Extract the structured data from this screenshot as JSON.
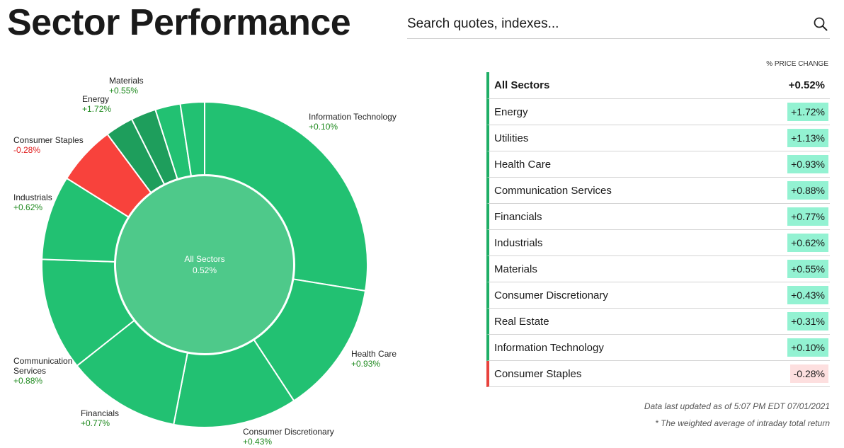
{
  "page": {
    "title": "Sector Performance"
  },
  "search": {
    "placeholder": "Search quotes, indexes..."
  },
  "table": {
    "header": "% PRICE CHANGE",
    "rows": [
      {
        "name": "All Sectors",
        "value": "+0.52%",
        "status": "summary"
      },
      {
        "name": "Energy",
        "value": "+1.72%",
        "status": "up"
      },
      {
        "name": "Utilities",
        "value": "+1.13%",
        "status": "up"
      },
      {
        "name": "Health Care",
        "value": "+0.93%",
        "status": "up"
      },
      {
        "name": "Communication Services",
        "value": "+0.88%",
        "status": "up"
      },
      {
        "name": "Financials",
        "value": "+0.77%",
        "status": "up"
      },
      {
        "name": "Industrials",
        "value": "+0.62%",
        "status": "up"
      },
      {
        "name": "Materials",
        "value": "+0.55%",
        "status": "up"
      },
      {
        "name": "Consumer Discretionary",
        "value": "+0.43%",
        "status": "up"
      },
      {
        "name": "Real Estate",
        "value": "+0.31%",
        "status": "up"
      },
      {
        "name": "Information Technology",
        "value": "+0.10%",
        "status": "up"
      },
      {
        "name": "Consumer Staples",
        "value": "-0.28%",
        "status": "down"
      }
    ]
  },
  "footer": {
    "updated": "Data last updated as of 5:07 PM EDT 07/01/2021",
    "note": "* The weighted average of intraday total return"
  },
  "colors": {
    "positive": "#22c172",
    "positive_dark": "#1e9e5c",
    "negative": "#f8423c",
    "center": "#4ec98a",
    "positive_text": "#1f8a1f",
    "negative_text": "#e02020"
  },
  "chart_data": {
    "type": "pie",
    "center_label": {
      "name": "All Sectors",
      "value": "0.52%"
    },
    "slices": [
      {
        "name": "Information Technology",
        "value": 27.6,
        "change": 0.1,
        "label": "Information Technology",
        "change_label": "+0.10%",
        "labeled": true
      },
      {
        "name": "Health Care",
        "value": 13.2,
        "change": 0.93,
        "label": "Health Care",
        "change_label": "+0.93%",
        "labeled": true
      },
      {
        "name": "Consumer Discretionary",
        "value": 12.3,
        "change": 0.43,
        "label": "Consumer Discretionary",
        "change_label": "+0.43%",
        "labeled": true
      },
      {
        "name": "Financials",
        "value": 11.3,
        "change": 0.77,
        "label": "Financials",
        "change_label": "+0.77%",
        "labeled": true
      },
      {
        "name": "Communication Services",
        "value": 11.2,
        "change": 0.88,
        "label": "Communication Services",
        "change_label": "+0.88%",
        "labeled": true
      },
      {
        "name": "Industrials",
        "value": 8.4,
        "change": 0.62,
        "label": "Industrials",
        "change_label": "+0.62%",
        "labeled": true
      },
      {
        "name": "Consumer Staples",
        "value": 5.9,
        "change": -0.28,
        "label": "Consumer Staples",
        "change_label": "-0.28%",
        "labeled": true
      },
      {
        "name": "Energy",
        "value": 2.8,
        "change": 1.72,
        "label": "Energy",
        "change_label": "+1.72%",
        "labeled": true
      },
      {
        "name": "Utilities",
        "value": 2.5,
        "change": 1.13,
        "label": "",
        "change_label": "",
        "labeled": false
      },
      {
        "name": "Materials",
        "value": 2.5,
        "change": 0.55,
        "label": "Materials",
        "change_label": "+0.55%",
        "labeled": true
      },
      {
        "name": "Real Estate",
        "value": 2.4,
        "change": 0.31,
        "label": "",
        "change_label": "",
        "labeled": false
      }
    ]
  }
}
